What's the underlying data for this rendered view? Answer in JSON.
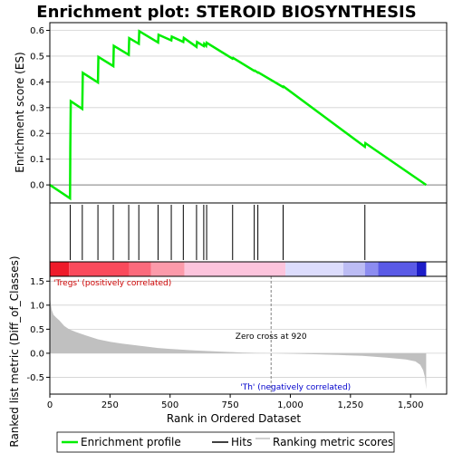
{
  "chart_data": {
    "type": "line",
    "title": "Enrichment plot: STEROID BIOSYNTHESIS",
    "x_axis": {
      "label": "Rank in Ordered Dataset",
      "range": [
        0,
        1650
      ],
      "ticks": [
        0,
        250,
        500,
        750,
        1000,
        1250,
        1500
      ],
      "tick_labels": [
        "0",
        "250",
        "500",
        "750",
        "1,000",
        "1,250",
        "1,500"
      ]
    },
    "es_panel": {
      "ylabel": "Enrichment score (ES)",
      "ylim": [
        -0.07,
        0.63
      ],
      "yticks": [
        0.0,
        0.1,
        0.2,
        0.3,
        0.4,
        0.5,
        0.6
      ],
      "ytick_labels": [
        "0.0",
        "0.1",
        "0.2",
        "0.3",
        "0.4",
        "0.5",
        "0.6"
      ],
      "grid": true,
      "line_color": "#00ee00",
      "profile": [
        [
          0,
          0.0
        ],
        [
          84,
          -0.052
        ],
        [
          85,
          0.14
        ],
        [
          87,
          0.325
        ],
        [
          135,
          0.295
        ],
        [
          137,
          0.435
        ],
        [
          200,
          0.398
        ],
        [
          202,
          0.497
        ],
        [
          264,
          0.461
        ],
        [
          266,
          0.54
        ],
        [
          328,
          0.505
        ],
        [
          330,
          0.57
        ],
        [
          370,
          0.548
        ],
        [
          372,
          0.597
        ],
        [
          450,
          0.553
        ],
        [
          452,
          0.583
        ],
        [
          505,
          0.561
        ],
        [
          507,
          0.576
        ],
        [
          555,
          0.555
        ],
        [
          557,
          0.571
        ],
        [
          610,
          0.536
        ],
        [
          612,
          0.555
        ],
        [
          640,
          0.539
        ],
        [
          642,
          0.548
        ],
        [
          650,
          0.54
        ],
        [
          652,
          0.552
        ],
        [
          760,
          0.49
        ],
        [
          762,
          0.493
        ],
        [
          850,
          0.443
        ],
        [
          852,
          0.444
        ],
        [
          865,
          0.436
        ],
        [
          867,
          0.437
        ],
        [
          970,
          0.38
        ],
        [
          972,
          0.382
        ],
        [
          1310,
          0.148
        ],
        [
          1312,
          0.162
        ],
        [
          1565,
          0.0
        ]
      ]
    },
    "hits_panel": {
      "hit_ranks": [
        85,
        135,
        200,
        264,
        328,
        370,
        450,
        505,
        555,
        610,
        640,
        652,
        760,
        850,
        865,
        970,
        1310
      ]
    },
    "color_bar": {
      "segments": [
        {
          "start": 0,
          "end": 80,
          "color": "#ee1a2a"
        },
        {
          "start": 80,
          "end": 330,
          "color": "#fa4a5c"
        },
        {
          "start": 330,
          "end": 420,
          "color": "#fb6a7c"
        },
        {
          "start": 420,
          "end": 560,
          "color": "#fc9aaa"
        },
        {
          "start": 560,
          "end": 980,
          "color": "#fcc4dc"
        },
        {
          "start": 980,
          "end": 1220,
          "color": "#dcdcfc"
        },
        {
          "start": 1220,
          "end": 1310,
          "color": "#bcbcf4"
        },
        {
          "start": 1310,
          "end": 1365,
          "color": "#8c8cf0"
        },
        {
          "start": 1365,
          "end": 1525,
          "color": "#5a5ae6"
        },
        {
          "start": 1525,
          "end": 1565,
          "color": "#1c1cc8"
        }
      ]
    },
    "metric_panel": {
      "ylabel": "Ranked list metric (Diff_of_Classes)",
      "ylim": [
        -0.85,
        1.6
      ],
      "yticks": [
        -0.5,
        0.0,
        0.5,
        1.0,
        1.5
      ],
      "ytick_labels": [
        "-0.5",
        "0.0",
        "0.5",
        "1.0",
        "1.5"
      ],
      "grid": true,
      "fill_color": "#c0c0c0",
      "metric": [
        [
          0,
          1.22
        ],
        [
          3,
          1.05
        ],
        [
          8,
          0.9
        ],
        [
          15,
          0.8
        ],
        [
          25,
          0.75
        ],
        [
          40,
          0.68
        ],
        [
          60,
          0.57
        ],
        [
          80,
          0.5
        ],
        [
          110,
          0.44
        ],
        [
          150,
          0.37
        ],
        [
          200,
          0.29
        ],
        [
          250,
          0.24
        ],
        [
          300,
          0.2
        ],
        [
          350,
          0.17
        ],
        [
          400,
          0.14
        ],
        [
          450,
          0.11
        ],
        [
          500,
          0.09
        ],
        [
          600,
          0.06
        ],
        [
          700,
          0.035
        ],
        [
          800,
          0.015
        ],
        [
          900,
          0.003
        ],
        [
          920,
          0.0
        ],
        [
          1000,
          -0.01
        ],
        [
          1100,
          -0.02
        ],
        [
          1200,
          -0.035
        ],
        [
          1300,
          -0.055
        ],
        [
          1400,
          -0.09
        ],
        [
          1480,
          -0.13
        ],
        [
          1520,
          -0.17
        ],
        [
          1540,
          -0.24
        ],
        [
          1552,
          -0.35
        ],
        [
          1560,
          -0.5
        ],
        [
          1565,
          -0.75
        ]
      ],
      "zero_cross_rank": 920,
      "annotations": {
        "positive": "'Tregs' (positively correlated)",
        "negative": "'Th' (negatively correlated)",
        "zero_cross": "Zero cross at 920"
      },
      "positive_color": "#cc0000",
      "negative_color": "#0000cc"
    },
    "legend": {
      "placement": "bottom",
      "entries": [
        {
          "label": "Enrichment profile",
          "color": "#00ee00"
        },
        {
          "label": "Hits",
          "color": "#000000"
        },
        {
          "label": "Ranking metric scores",
          "color": "#c0c0c0"
        }
      ]
    }
  }
}
